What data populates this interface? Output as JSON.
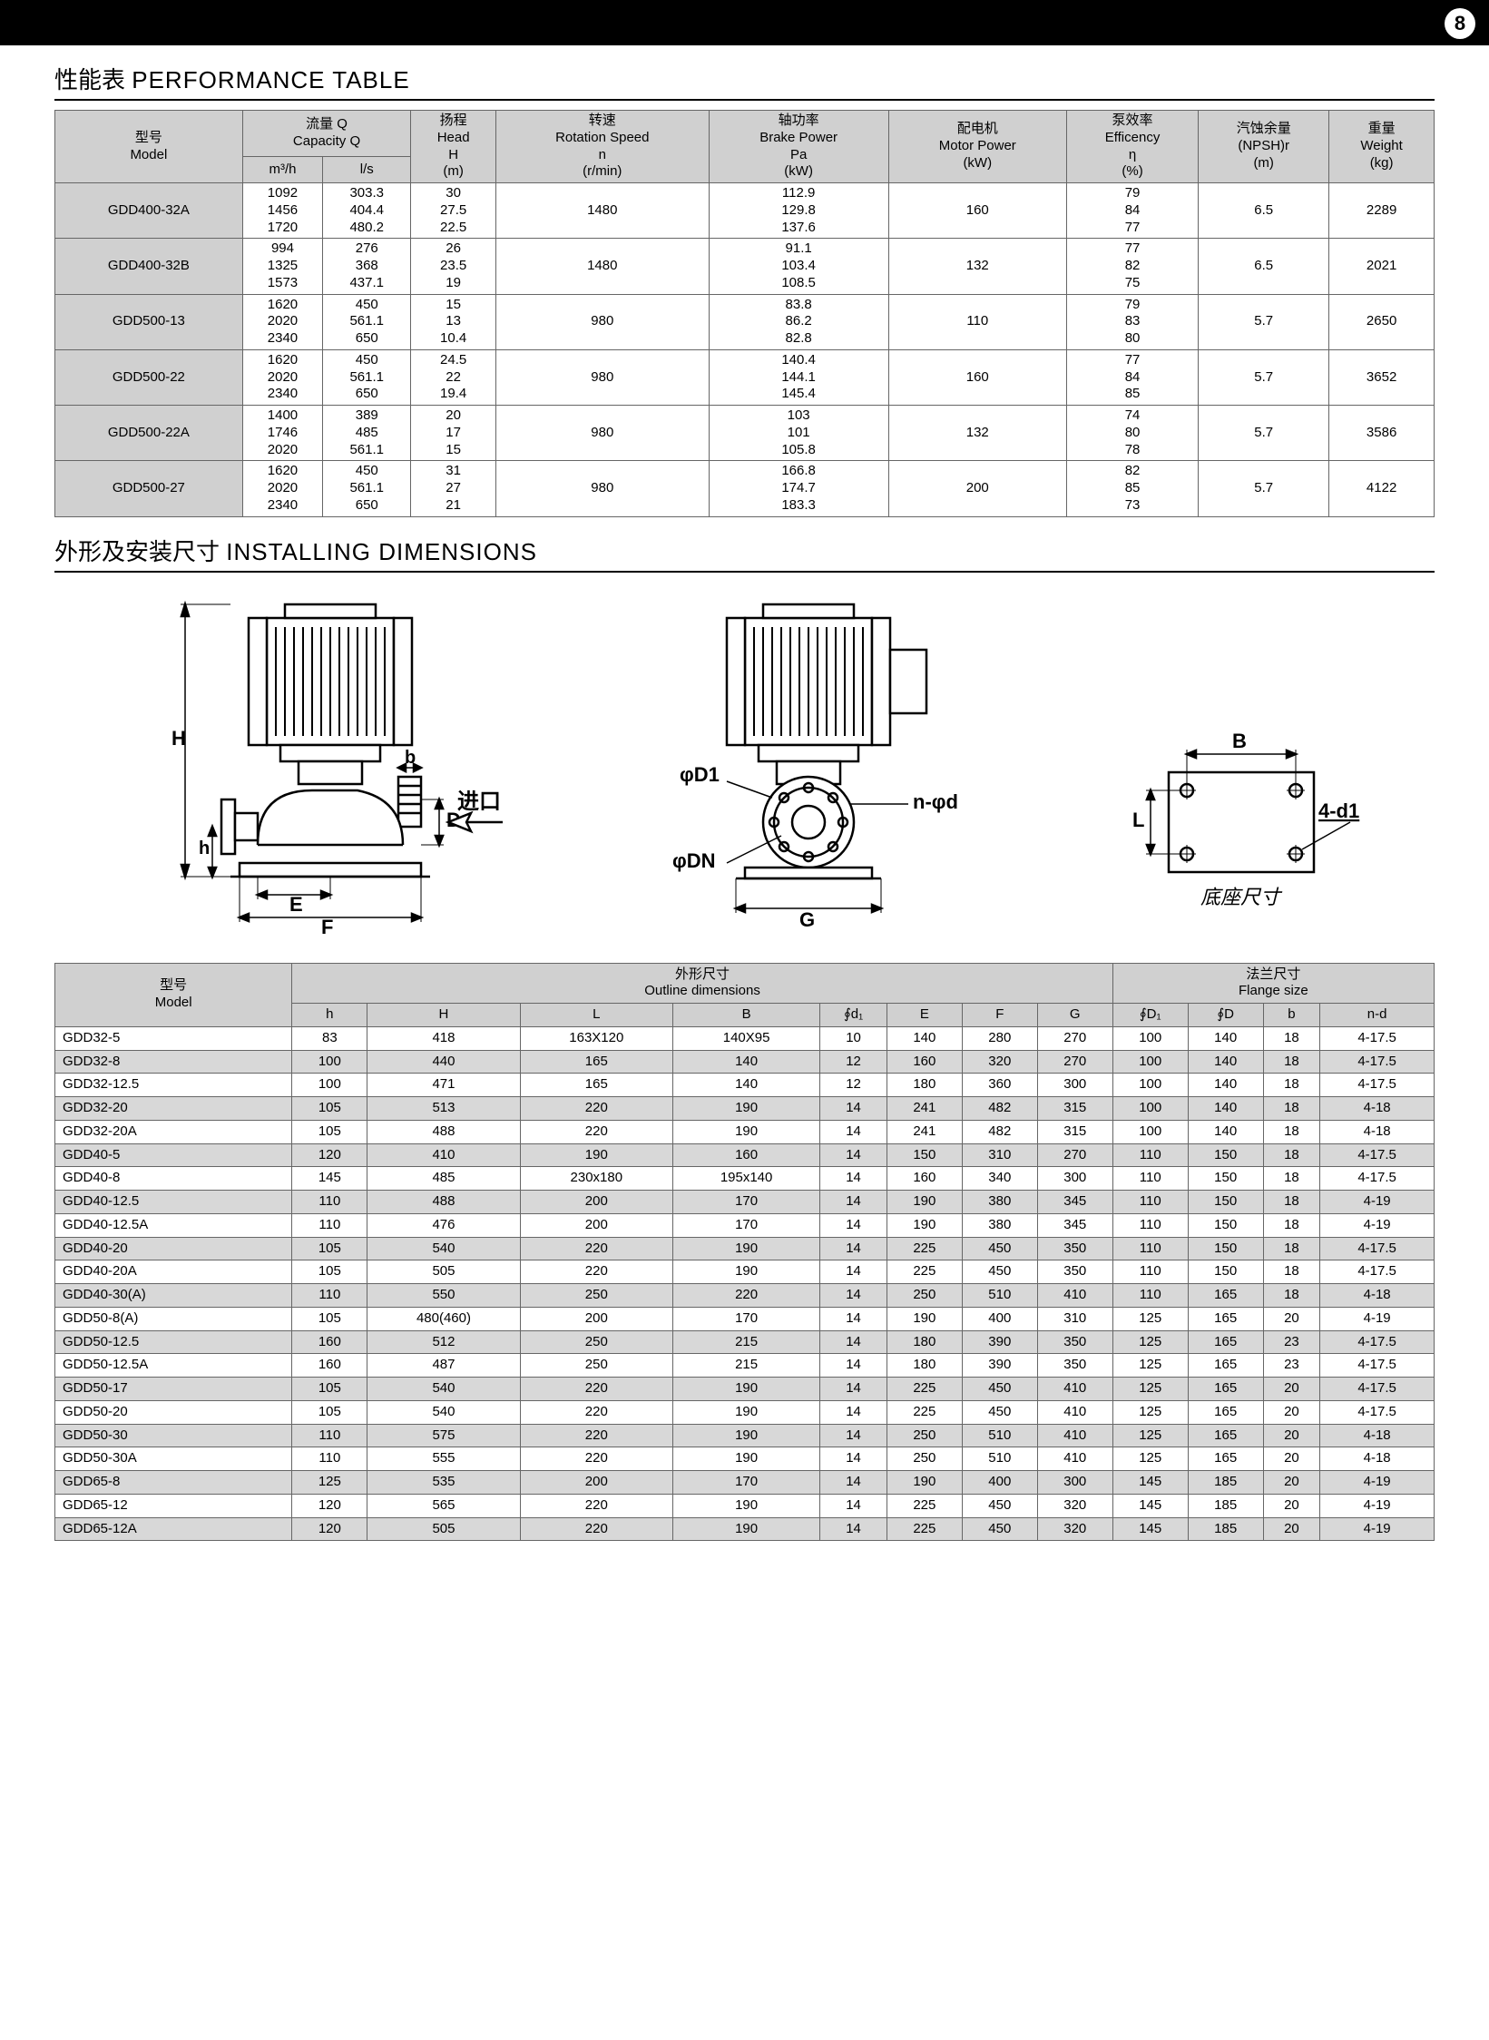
{
  "page_number": "8",
  "section1": {
    "title_cn": "性能表",
    "title_en": "PERFORMANCE TABLE"
  },
  "section2": {
    "title_cn": "外形及安装尺寸",
    "title_en": "INSTALLING DIMENSIONS"
  },
  "perf_headers": {
    "model_cn": "型号",
    "model_en": "Model",
    "capacity_cn": "流量 Q",
    "capacity_en": "Capacity Q",
    "m3h": "m³/h",
    "ls": "l/s",
    "head_cn": "扬程",
    "head_en": "Head\nH\n(m)",
    "speed_cn": "转速",
    "speed_en": "Rotation Speed\nn\n(r/min)",
    "brake_cn": "轴功率",
    "brake_en": "Brake Power\nPa\n(kW)",
    "motor_cn": "配电机",
    "motor_en": "Motor Power\n(kW)",
    "eff_cn": "泵效率",
    "eff_en": "Efficency\nη\n(%)",
    "npsh_cn": "汽蚀余量",
    "npsh_en": "(NPSH)r\n(m)",
    "wt_cn": "重量",
    "wt_en": "Weight\n(kg)"
  },
  "perf_rows": [
    {
      "model": "GDD400-32A",
      "m3h": "1092\n1456\n1720",
      "ls": "303.3\n404.4\n480.2",
      "head": "30\n27.5\n22.5",
      "speed": "1480",
      "brake": "112.9\n129.8\n137.6",
      "motor": "160",
      "eff": "79\n84\n77",
      "npsh": "6.5",
      "wt": "2289"
    },
    {
      "model": "GDD400-32B",
      "m3h": "994\n1325\n1573",
      "ls": "276\n368\n437.1",
      "head": "26\n23.5\n19",
      "speed": "1480",
      "brake": "91.1\n103.4\n108.5",
      "motor": "132",
      "eff": "77\n82\n75",
      "npsh": "6.5",
      "wt": "2021"
    },
    {
      "model": "GDD500-13",
      "m3h": "1620\n2020\n2340",
      "ls": "450\n561.1\n650",
      "head": "15\n13\n10.4",
      "speed": "980",
      "brake": "83.8\n86.2\n82.8",
      "motor": "110",
      "eff": "79\n83\n80",
      "npsh": "5.7",
      "wt": "2650"
    },
    {
      "model": "GDD500-22",
      "m3h": "1620\n2020\n2340",
      "ls": "450\n561.1\n650",
      "head": "24.5\n22\n19.4",
      "speed": "980",
      "brake": "140.4\n144.1\n145.4",
      "motor": "160",
      "eff": "77\n84\n85",
      "npsh": "5.7",
      "wt": "3652"
    },
    {
      "model": "GDD500-22A",
      "m3h": "1400\n1746\n2020",
      "ls": "389\n485\n561.1",
      "head": "20\n17\n15",
      "speed": "980",
      "brake": "103\n101\n105.8",
      "motor": "132",
      "eff": "74\n80\n78",
      "npsh": "5.7",
      "wt": "3586"
    },
    {
      "model": "GDD500-27",
      "m3h": "1620\n2020\n2340",
      "ls": "450\n561.1\n650",
      "head": "31\n27\n21",
      "speed": "980",
      "brake": "166.8\n174.7\n183.3",
      "motor": "200",
      "eff": "82\n85\n73",
      "npsh": "5.7",
      "wt": "4122"
    }
  ],
  "diagram_labels": {
    "H": "H",
    "h": "h",
    "b": "b",
    "D": "D",
    "E": "E",
    "F": "F",
    "inlet": "进口",
    "phiD1": "φD1",
    "phiDN": "φDN",
    "nphid": "n-φd",
    "G": "G",
    "B": "B",
    "L": "L",
    "fourd1": "4-d1",
    "base": "底座尺寸"
  },
  "dim_headers": {
    "model_cn": "型号",
    "model_en": "Model",
    "outline_cn": "外形尺寸",
    "outline_en": "Outline dimensions",
    "flange_cn": "法兰尺寸",
    "flange_en": "Flange size",
    "h": "h",
    "H": "H",
    "L": "L",
    "B": "B",
    "d1": "∮d₁",
    "E": "E",
    "F": "F",
    "G": "G",
    "D1": "∮D₁",
    "D": "∮D",
    "b": "b",
    "nd": "n-d"
  },
  "dim_rows": [
    {
      "model": "GDD32-5",
      "h": "83",
      "H": "418",
      "L": "163X120",
      "B": "140X95",
      "d1": "10",
      "E": "140",
      "F": "280",
      "G": "270",
      "D1": "100",
      "D": "140",
      "b": "18",
      "nd": "4-17.5"
    },
    {
      "model": "GDD32-8",
      "h": "100",
      "H": "440",
      "L": "165",
      "B": "140",
      "d1": "12",
      "E": "160",
      "F": "320",
      "G": "270",
      "D1": "100",
      "D": "140",
      "b": "18",
      "nd": "4-17.5"
    },
    {
      "model": "GDD32-12.5",
      "h": "100",
      "H": "471",
      "L": "165",
      "B": "140",
      "d1": "12",
      "E": "180",
      "F": "360",
      "G": "300",
      "D1": "100",
      "D": "140",
      "b": "18",
      "nd": "4-17.5"
    },
    {
      "model": "GDD32-20",
      "h": "105",
      "H": "513",
      "L": "220",
      "B": "190",
      "d1": "14",
      "E": "241",
      "F": "482",
      "G": "315",
      "D1": "100",
      "D": "140",
      "b": "18",
      "nd": "4-18"
    },
    {
      "model": "GDD32-20A",
      "h": "105",
      "H": "488",
      "L": "220",
      "B": "190",
      "d1": "14",
      "E": "241",
      "F": "482",
      "G": "315",
      "D1": "100",
      "D": "140",
      "b": "18",
      "nd": "4-18"
    },
    {
      "model": "GDD40-5",
      "h": "120",
      "H": "410",
      "L": "190",
      "B": "160",
      "d1": "14",
      "E": "150",
      "F": "310",
      "G": "270",
      "D1": "110",
      "D": "150",
      "b": "18",
      "nd": "4-17.5"
    },
    {
      "model": "GDD40-8",
      "h": "145",
      "H": "485",
      "L": "230x180",
      "B": "195x140",
      "d1": "14",
      "E": "160",
      "F": "340",
      "G": "300",
      "D1": "110",
      "D": "150",
      "b": "18",
      "nd": "4-17.5"
    },
    {
      "model": "GDD40-12.5",
      "h": "110",
      "H": "488",
      "L": "200",
      "B": "170",
      "d1": "14",
      "E": "190",
      "F": "380",
      "G": "345",
      "D1": "110",
      "D": "150",
      "b": "18",
      "nd": "4-19"
    },
    {
      "model": "GDD40-12.5A",
      "h": "110",
      "H": "476",
      "L": "200",
      "B": "170",
      "d1": "14",
      "E": "190",
      "F": "380",
      "G": "345",
      "D1": "110",
      "D": "150",
      "b": "18",
      "nd": "4-19"
    },
    {
      "model": "GDD40-20",
      "h": "105",
      "H": "540",
      "L": "220",
      "B": "190",
      "d1": "14",
      "E": "225",
      "F": "450",
      "G": "350",
      "D1": "110",
      "D": "150",
      "b": "18",
      "nd": "4-17.5"
    },
    {
      "model": "GDD40-20A",
      "h": "105",
      "H": "505",
      "L": "220",
      "B": "190",
      "d1": "14",
      "E": "225",
      "F": "450",
      "G": "350",
      "D1": "110",
      "D": "150",
      "b": "18",
      "nd": "4-17.5"
    },
    {
      "model": "GDD40-30(A)",
      "h": "110",
      "H": "550",
      "L": "250",
      "B": "220",
      "d1": "14",
      "E": "250",
      "F": "510",
      "G": "410",
      "D1": "110",
      "D": "165",
      "b": "18",
      "nd": "4-18"
    },
    {
      "model": "GDD50-8(A)",
      "h": "105",
      "H": "480(460)",
      "L": "200",
      "B": "170",
      "d1": "14",
      "E": "190",
      "F": "400",
      "G": "310",
      "D1": "125",
      "D": "165",
      "b": "20",
      "nd": "4-19"
    },
    {
      "model": "GDD50-12.5",
      "h": "160",
      "H": "512",
      "L": "250",
      "B": "215",
      "d1": "14",
      "E": "180",
      "F": "390",
      "G": "350",
      "D1": "125",
      "D": "165",
      "b": "23",
      "nd": "4-17.5"
    },
    {
      "model": "GDD50-12.5A",
      "h": "160",
      "H": "487",
      "L": "250",
      "B": "215",
      "d1": "14",
      "E": "180",
      "F": "390",
      "G": "350",
      "D1": "125",
      "D": "165",
      "b": "23",
      "nd": "4-17.5"
    },
    {
      "model": "GDD50-17",
      "h": "105",
      "H": "540",
      "L": "220",
      "B": "190",
      "d1": "14",
      "E": "225",
      "F": "450",
      "G": "410",
      "D1": "125",
      "D": "165",
      "b": "20",
      "nd": "4-17.5"
    },
    {
      "model": "GDD50-20",
      "h": "105",
      "H": "540",
      "L": "220",
      "B": "190",
      "d1": "14",
      "E": "225",
      "F": "450",
      "G": "410",
      "D1": "125",
      "D": "165",
      "b": "20",
      "nd": "4-17.5"
    },
    {
      "model": "GDD50-30",
      "h": "110",
      "H": "575",
      "L": "220",
      "B": "190",
      "d1": "14",
      "E": "250",
      "F": "510",
      "G": "410",
      "D1": "125",
      "D": "165",
      "b": "20",
      "nd": "4-18"
    },
    {
      "model": "GDD50-30A",
      "h": "110",
      "H": "555",
      "L": "220",
      "B": "190",
      "d1": "14",
      "E": "250",
      "F": "510",
      "G": "410",
      "D1": "125",
      "D": "165",
      "b": "20",
      "nd": "4-18"
    },
    {
      "model": "GDD65-8",
      "h": "125",
      "H": "535",
      "L": "200",
      "B": "170",
      "d1": "14",
      "E": "190",
      "F": "400",
      "G": "300",
      "D1": "145",
      "D": "185",
      "b": "20",
      "nd": "4-19"
    },
    {
      "model": "GDD65-12",
      "h": "120",
      "H": "565",
      "L": "220",
      "B": "190",
      "d1": "14",
      "E": "225",
      "F": "450",
      "G": "320",
      "D1": "145",
      "D": "185",
      "b": "20",
      "nd": "4-19"
    },
    {
      "model": "GDD65-12A",
      "h": "120",
      "H": "505",
      "L": "220",
      "B": "190",
      "d1": "14",
      "E": "225",
      "F": "450",
      "G": "320",
      "D1": "145",
      "D": "185",
      "b": "20",
      "nd": "4-19"
    }
  ]
}
